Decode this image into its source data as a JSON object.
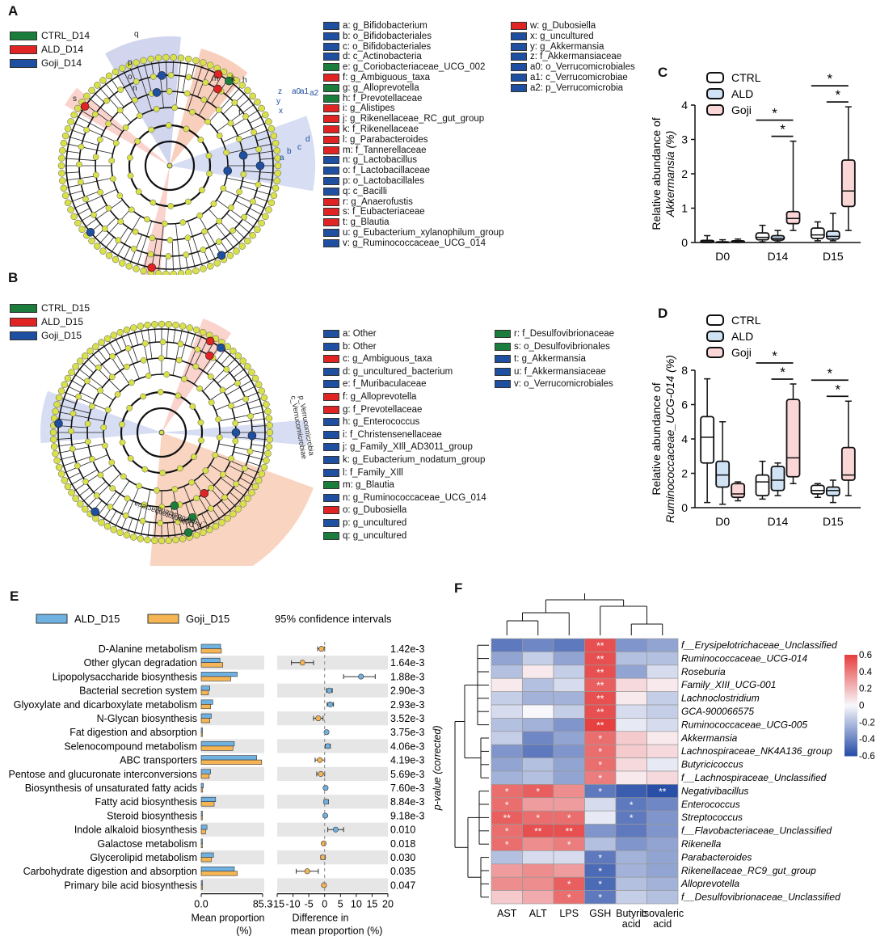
{
  "colors": {
    "ctrl": "#1a7d3c",
    "ald": "#e02323",
    "goji": "#1f4fa0",
    "node": "#d8e04a",
    "ald_bar": "#6fb2e2",
    "goji_bar": "#f5b554",
    "hm_pos": "#e64040",
    "hm_neg": "#2a4fa8"
  },
  "panel_letters": {
    "a": "A",
    "b": "B",
    "c": "C",
    "d": "D",
    "e": "E",
    "f": "F"
  },
  "panelA": {
    "legend": [
      "CTRL_D14",
      "ALD_D14",
      "Goji_D14"
    ],
    "tree_labels": [
      "a2",
      "a1",
      "a0",
      "z",
      "y",
      "x",
      "d",
      "c",
      "b",
      "a",
      "q",
      "p",
      "o",
      "n",
      "m",
      "k",
      "h",
      "s",
      "f"
    ],
    "clades": [
      {
        "text": "a: g_Bifidobacterium",
        "group": "goji"
      },
      {
        "text": "b: o_Bifidobacteriales",
        "group": "goji"
      },
      {
        "text": "c: o_Bifidobacteriales",
        "group": "goji"
      },
      {
        "text": "d: c_Actinobacteria",
        "group": "goji"
      },
      {
        "text": "e: g_Coriobacteriaceae_UCG_002",
        "group": "ctrl"
      },
      {
        "text": "f: g_Ambiguous_taxa",
        "group": "ald"
      },
      {
        "text": "g: g_Alloprevotella",
        "group": "ctrl"
      },
      {
        "text": "h: f_Prevotellaceae",
        "group": "ctrl"
      },
      {
        "text": "i: g_Alistipes",
        "group": "ald"
      },
      {
        "text": "j: g_Rikenellaceae_RC_gut_group",
        "group": "ald"
      },
      {
        "text": "k: f_Rikenellaceae",
        "group": "ald"
      },
      {
        "text": "l: g_Parabacteroides",
        "group": "ald"
      },
      {
        "text": "m: f_Tannerellaceae",
        "group": "ald"
      },
      {
        "text": "n: g_Lactobacillus",
        "group": "goji"
      },
      {
        "text": "o: f_Lactobacillaceae",
        "group": "goji"
      },
      {
        "text": "p: o_Lactobacillales",
        "group": "goji"
      },
      {
        "text": "q: c_Bacilli",
        "group": "goji"
      },
      {
        "text": "r: g_Anaerofustis",
        "group": "ald"
      },
      {
        "text": "s: f_Eubacteriaceae",
        "group": "ald"
      },
      {
        "text": "t: g_Blautia",
        "group": "ald"
      },
      {
        "text": "u: g_Eubacterium_xylanophilum_group",
        "group": "goji"
      },
      {
        "text": "v: g_Ruminococcaceae_UCG_014",
        "group": "goji"
      },
      {
        "text": "w: g_Dubosiella",
        "group": "ald"
      },
      {
        "text": "x: g_uncultured",
        "group": "goji"
      },
      {
        "text": "y: g_Akkermansia",
        "group": "goji"
      },
      {
        "text": "z: f_Akkermansiaceae",
        "group": "goji"
      },
      {
        "text": "a0: o_Verrucomicrobiales",
        "group": "goji"
      },
      {
        "text": "a1: c_Verrucomicrobiae",
        "group": "goji"
      },
      {
        "text": "a2: p_Verrucomicrobia",
        "group": "goji"
      }
    ]
  },
  "panelB": {
    "legend": [
      "CTRL_D15",
      "ALD_D15",
      "Goji_D15"
    ],
    "tree_labels": [
      "p_Verrucomicrobia",
      "c_Verrucomicrobiae",
      "p_Proteobacteria",
      "c_Deltaproteobacteria"
    ],
    "clades": [
      {
        "text": "a: Other",
        "group": "goji"
      },
      {
        "text": "b: Other",
        "group": "goji"
      },
      {
        "text": "c: g_Ambiguous_taxa",
        "group": "ald"
      },
      {
        "text": "d: g_uncultured_bacterium",
        "group": "goji"
      },
      {
        "text": "e: f_Muribaculaceae",
        "group": "goji"
      },
      {
        "text": "f: g_Alloprevotella",
        "group": "ald"
      },
      {
        "text": "g: f_Prevotellaceae",
        "group": "ald"
      },
      {
        "text": "h: g_Enterococcus",
        "group": "goji"
      },
      {
        "text": "i: f_Christensenellaceae",
        "group": "goji"
      },
      {
        "text": "j: g_Family_XIll_AD3011_group",
        "group": "goji"
      },
      {
        "text": "k: g_Eubacterium_nodatum_group",
        "group": "goji"
      },
      {
        "text": "l: f_Family_XIll",
        "group": "goji"
      },
      {
        "text": "m: g_Blautia",
        "group": "ctrl"
      },
      {
        "text": "n: g_Ruminococcaceae_UCG_014",
        "group": "goji"
      },
      {
        "text": "o: g_Dubosiella",
        "group": "ald"
      },
      {
        "text": "p: g_uncultured",
        "group": "goji"
      },
      {
        "text": "q: g_uncultured",
        "group": "ctrl"
      },
      {
        "text": "r: f_Desulfovibrionaceae",
        "group": "ctrl"
      },
      {
        "text": "s: o_Desulfovibrionales",
        "group": "ctrl"
      },
      {
        "text": "t: g_Akkermansia",
        "group": "goji"
      },
      {
        "text": "u: f_Akkermansiaceae",
        "group": "goji"
      },
      {
        "text": "v: o_Verrucomicrobiales",
        "group": "goji"
      }
    ]
  },
  "chart_data": [
    {
      "panel": "C",
      "type": "box",
      "ylabel_line1": "Relative abundance of",
      "ylabel_line2": "Akkermansia (%)",
      "ylim": [
        0,
        4
      ],
      "yticks": [
        "0",
        "1",
        "2",
        "3",
        "4"
      ],
      "categories": [
        "D0",
        "D14",
        "D15"
      ],
      "legend": [
        "CTRL",
        "ALD",
        "Goji"
      ],
      "series": [
        {
          "name": "CTRL",
          "boxes": [
            [
              0,
              0,
              0.02,
              0.06,
              0.2
            ],
            [
              0.02,
              0.08,
              0.15,
              0.28,
              0.5
            ],
            [
              0.05,
              0.12,
              0.22,
              0.42,
              0.6
            ]
          ]
        },
        {
          "name": "ALD",
          "boxes": [
            [
              0,
              0,
              0,
              0.02,
              0.08
            ],
            [
              0.02,
              0.07,
              0.12,
              0.2,
              0.35
            ],
            [
              0.05,
              0.1,
              0.18,
              0.33,
              0.85
            ]
          ]
        },
        {
          "name": "Goji",
          "boxes": [
            [
              0,
              0.01,
              0.03,
              0.05,
              0.1
            ],
            [
              0.35,
              0.55,
              0.7,
              0.9,
              2.95
            ],
            [
              0.35,
              1.05,
              1.5,
              2.4,
              3.95
            ]
          ]
        }
      ],
      "significance": [
        {
          "cat": "D14",
          "marks": [
            "*",
            "*"
          ]
        },
        {
          "cat": "D15",
          "marks": [
            "*",
            "*"
          ]
        }
      ]
    },
    {
      "panel": "D",
      "type": "box",
      "ylabel_line1": "Relative abundance of",
      "ylabel_line2": "Ruminococcaceae_UCG-014 (%)",
      "ylim": [
        0,
        8
      ],
      "yticks": [
        "0",
        "2",
        "4",
        "6",
        "8"
      ],
      "categories": [
        "D0",
        "D14",
        "D15"
      ],
      "legend": [
        "CTRL",
        "ALD",
        "Goji"
      ],
      "series": [
        {
          "name": "CTRL",
          "boxes": [
            [
              0.3,
              2.6,
              4.1,
              5.3,
              7.5
            ],
            [
              0.5,
              0.7,
              1.5,
              1.9,
              2.7
            ],
            [
              0.6,
              0.8,
              1.0,
              1.3,
              1.4
            ]
          ]
        },
        {
          "name": "ALD",
          "boxes": [
            [
              0.2,
              1.2,
              1.9,
              2.7,
              5.0
            ],
            [
              0.7,
              1.0,
              1.6,
              2.4,
              2.6
            ],
            [
              0.3,
              0.7,
              1.0,
              1.2,
              1.6
            ]
          ]
        },
        {
          "name": "Goji",
          "boxes": [
            [
              0.4,
              0.6,
              0.8,
              1.4,
              1.5
            ],
            [
              1.4,
              1.8,
              2.9,
              6.3,
              7.2
            ],
            [
              0.7,
              1.6,
              1.9,
              3.5,
              6.2
            ]
          ]
        }
      ],
      "significance": [
        {
          "cat": "D14",
          "marks": [
            "*",
            "*"
          ]
        },
        {
          "cat": "D15",
          "marks": [
            "*",
            "*"
          ]
        }
      ]
    },
    {
      "panel": "E",
      "type": "bar",
      "legend": [
        "ALD_D15",
        "Goji_D15"
      ],
      "ci_title": "95% confidence intervals",
      "pvalue_axis_label": "p-value (corrected)",
      "x1label_line1": "Mean proportion",
      "x1label_line2": "(%)",
      "x1ticks": [
        "0.0",
        "85.3"
      ],
      "x2label_line1": "Difference in",
      "x2label_line2": "mean proportion (%)",
      "x2ticks": [
        "-15",
        "-10",
        "-5",
        "0",
        "5",
        "10",
        "15",
        "20"
      ],
      "categories": [
        "D-Alanine metabolism",
        "Other glycan degradation",
        "Lipopolysaccharide biosynthesis",
        "Bacterial secretion system",
        "Glyoxylate and dicarboxylate metabolism",
        "N-Glycan biosynthesis",
        "Fat digestion and absorption",
        "Selenocompound metabolism",
        "ABC transporters",
        "Pentose and glucuronate interconversions",
        "Biosynthesis of unsaturated fatty acids",
        "Fatty acid biosynthesis",
        "Steroid biosynthesis",
        "Indole alkaloid biosynthesis",
        "Galactose metabolism",
        "Glycerolipid metabolism",
        "Carbohydrate digestion and absorption",
        "Primary bile acid biosynthesis"
      ],
      "ald_mean": [
        27,
        26,
        50,
        12,
        16,
        14,
        1,
        46,
        77,
        13,
        3,
        20,
        1,
        8,
        1,
        17,
        46,
        1
      ],
      "goji_mean": [
        28,
        30,
        41,
        10,
        13,
        12,
        0.5,
        44,
        84,
        11,
        2,
        18,
        0.5,
        6,
        0.5,
        14,
        50,
        0.5
      ],
      "diff": [
        -1.0,
        -7.0,
        11.5,
        1.5,
        1.8,
        -2.0,
        0.6,
        1.0,
        -1.5,
        -1.2,
        0.3,
        0.5,
        0.2,
        3.5,
        -0.3,
        -0.5,
        -5.5,
        -0.2
      ],
      "ci_low": [
        -2.2,
        -10.5,
        6.0,
        0.6,
        0.8,
        -3.5,
        0.2,
        0.2,
        -3.0,
        -2.5,
        0.0,
        -0.2,
        0.0,
        1.0,
        -0.6,
        -1.2,
        -9.0,
        -0.5
      ],
      "ci_high": [
        0.0,
        -3.5,
        16.0,
        2.4,
        2.8,
        -0.5,
        1.0,
        1.8,
        0.0,
        0.0,
        0.6,
        1.2,
        0.4,
        6.0,
        0.0,
        0.2,
        -2.0,
        0.1
      ],
      "pvalues": [
        "1.42e-3",
        "1.64e-3",
        "1.88e-3",
        "2.90e-3",
        "2.93e-3",
        "3.52e-3",
        "3.75e-3",
        "4.06e-3",
        "4.19e-3",
        "5.69e-3",
        "7.60e-3",
        "8.84e-3",
        "9.18e-3",
        "0.010",
        "0.018",
        "0.030",
        "0.035",
        "0.047"
      ]
    },
    {
      "panel": "F",
      "type": "heatmap",
      "columns": [
        "AST",
        "ALT",
        "LPS",
        "GSH",
        "Butyric\nacid",
        "Isovaleric\nacid"
      ],
      "rows": [
        "f__Erysipelotrichaceae_Unclassified",
        "Ruminococcaceae_UCG-014",
        "Roseburia",
        "Family_XIII_UCG-001",
        "Lachnoclostridium",
        "GCA-900066575",
        "Ruminococcaceae_UCG-005",
        "Akkermansia",
        "Lachnospiraceae_NK4A136_group",
        "Butyricicoccus",
        "f__Lachnospiraceae_Unclassified",
        "Negativibacillus",
        "Enterococcus",
        "Streptococcus",
        "f__Flavobacteriaceae_Unclassified",
        "Rikenella",
        "Parabacteroides",
        "Rikenellaceae_RC9_gut_group",
        "Alloprevotella",
        "f__Desulfovibrionaceae_Unclassified"
      ],
      "values": [
        [
          -0.45,
          -0.4,
          -0.45,
          0.55,
          -0.35,
          -0.3
        ],
        [
          -0.3,
          -0.15,
          -0.3,
          0.55,
          -0.2,
          -0.2
        ],
        [
          -0.2,
          0.05,
          -0.15,
          0.55,
          -0.3,
          -0.1
        ],
        [
          0.05,
          -0.2,
          -0.1,
          0.5,
          0.1,
          0.05
        ],
        [
          -0.15,
          -0.25,
          -0.25,
          0.55,
          0.05,
          -0.15
        ],
        [
          -0.1,
          0.0,
          -0.15,
          0.55,
          -0.1,
          -0.15
        ],
        [
          -0.2,
          -0.25,
          -0.35,
          0.6,
          -0.05,
          -0.1
        ],
        [
          -0.15,
          -0.4,
          -0.3,
          0.45,
          0.15,
          0.05
        ],
        [
          -0.35,
          -0.45,
          -0.35,
          0.45,
          0.15,
          0.1
        ],
        [
          -0.3,
          -0.2,
          -0.3,
          0.45,
          0.1,
          -0.05
        ],
        [
          -0.25,
          -0.2,
          -0.3,
          0.4,
          0.05,
          0.1
        ],
        [
          0.45,
          0.5,
          0.35,
          -0.45,
          -0.55,
          -0.6
        ],
        [
          0.45,
          0.3,
          0.3,
          -0.1,
          -0.45,
          -0.4
        ],
        [
          0.5,
          0.45,
          0.45,
          -0.05,
          -0.45,
          -0.35
        ],
        [
          0.45,
          0.55,
          0.55,
          -0.35,
          -0.45,
          -0.35
        ],
        [
          0.45,
          0.35,
          0.4,
          -0.2,
          -0.35,
          -0.3
        ],
        [
          -0.2,
          -0.1,
          -0.1,
          -0.45,
          -0.25,
          -0.3
        ],
        [
          0.3,
          0.35,
          0.3,
          -0.5,
          -0.25,
          -0.3
        ],
        [
          0.35,
          0.35,
          0.5,
          -0.5,
          -0.2,
          -0.25
        ],
        [
          0.15,
          0.25,
          0.45,
          -0.45,
          -0.15,
          -0.2
        ]
      ],
      "stars": [
        [
          "",
          "",
          "",
          "**",
          "",
          ""
        ],
        [
          "",
          "",
          "",
          "**",
          "",
          ""
        ],
        [
          "",
          "",
          "",
          "**",
          "",
          ""
        ],
        [
          "",
          "",
          "",
          "**",
          "",
          ""
        ],
        [
          "",
          "",
          "",
          "**",
          "",
          ""
        ],
        [
          "",
          "",
          "",
          "**",
          "",
          ""
        ],
        [
          "",
          "",
          "",
          "**",
          "",
          ""
        ],
        [
          "",
          "",
          "",
          "*",
          "",
          ""
        ],
        [
          "",
          "",
          "",
          "*",
          "",
          ""
        ],
        [
          "",
          "",
          "",
          "*",
          "",
          ""
        ],
        [
          "",
          "",
          "",
          "*",
          "",
          ""
        ],
        [
          "*",
          "*",
          "",
          "*",
          "",
          "**"
        ],
        [
          "*",
          "",
          "",
          "",
          "*",
          ""
        ],
        [
          "**",
          "*",
          "*",
          "",
          "*",
          ""
        ],
        [
          "*",
          "**",
          "**",
          "",
          "",
          ""
        ],
        [
          "*",
          "",
          "*",
          "",
          "",
          ""
        ],
        [
          "",
          "",
          "",
          "*",
          "",
          ""
        ],
        [
          "",
          "",
          "",
          "*",
          "",
          ""
        ],
        [
          "",
          "",
          "*",
          "*",
          "",
          ""
        ],
        [
          "",
          "",
          "*",
          "*",
          "",
          ""
        ]
      ],
      "colorbar_ticks": [
        "0.6",
        "0.4",
        "0.2",
        "0",
        "-0.2",
        "-0.4",
        "-0.6"
      ],
      "vmin": -0.6,
      "vmax": 0.6
    }
  ]
}
